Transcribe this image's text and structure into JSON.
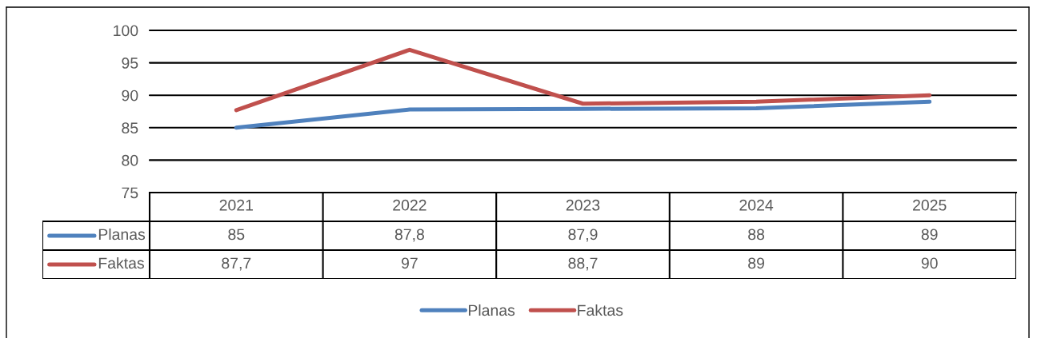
{
  "chart_data": {
    "type": "line",
    "categories": [
      "2021",
      "2022",
      "2023",
      "2024",
      "2025"
    ],
    "series": [
      {
        "name": "Planas",
        "color": "#4f81bd",
        "values": [
          85,
          87.8,
          87.9,
          88,
          89
        ],
        "value_labels": [
          "85",
          "87,8",
          "87,9",
          "88",
          "89"
        ]
      },
      {
        "name": "Faktas",
        "color": "#c0504d",
        "values": [
          87.7,
          97,
          88.7,
          89,
          90
        ],
        "value_labels": [
          "87,7",
          "97",
          "88,7",
          "89",
          "90"
        ]
      }
    ],
    "ylim": [
      75,
      100
    ],
    "yticks": [
      75,
      80,
      85,
      90,
      95,
      100
    ],
    "grid": "y",
    "legend": "bottom"
  }
}
